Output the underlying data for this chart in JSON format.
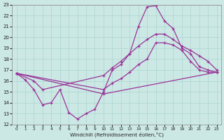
{
  "xlabel": "Windchill (Refroidissement éolien,°C)",
  "bg_color": "#cce8e4",
  "grid_color": "#aad4d0",
  "line_color": "#993399",
  "xlim": [
    -0.5,
    23.5
  ],
  "ylim": [
    12,
    23
  ],
  "xticks": [
    0,
    1,
    2,
    3,
    4,
    5,
    6,
    7,
    8,
    9,
    10,
    11,
    12,
    13,
    14,
    15,
    16,
    17,
    18,
    19,
    20,
    21,
    22,
    23
  ],
  "yticks": [
    12,
    13,
    14,
    15,
    16,
    17,
    18,
    19,
    20,
    21,
    22,
    23
  ],
  "curve1_x": [
    0,
    1,
    2,
    3,
    4,
    5,
    6,
    7,
    8,
    9,
    10,
    11,
    12,
    13,
    14,
    15,
    16,
    17,
    18,
    19,
    20,
    21,
    22,
    23
  ],
  "curve1_y": [
    16.7,
    16.1,
    15.2,
    13.8,
    14.0,
    15.2,
    13.1,
    12.5,
    13.0,
    13.4,
    15.0,
    17.0,
    17.5,
    18.5,
    21.0,
    22.8,
    22.9,
    21.5,
    20.8,
    19.0,
    18.5,
    17.3,
    17.0,
    16.8
  ],
  "curve2_x": [
    0,
    2,
    3,
    10,
    11,
    12,
    13,
    14,
    15,
    16,
    17,
    18,
    19,
    20,
    21,
    22,
    23
  ],
  "curve2_y": [
    16.7,
    16.0,
    15.2,
    16.5,
    17.2,
    17.8,
    18.5,
    19.2,
    19.8,
    20.3,
    20.3,
    19.8,
    19.2,
    18.8,
    18.3,
    17.8,
    17.0
  ],
  "curve3_x": [
    0,
    10,
    11,
    12,
    13,
    14,
    15,
    16,
    17,
    18,
    19,
    20,
    21,
    22,
    23
  ],
  "curve3_y": [
    16.7,
    15.2,
    15.8,
    16.2,
    16.8,
    17.5,
    18.0,
    19.5,
    19.5,
    19.3,
    18.8,
    17.8,
    17.0,
    16.8,
    16.8
  ],
  "curve4_x": [
    0,
    10,
    23
  ],
  "curve4_y": [
    16.7,
    14.8,
    16.8
  ]
}
